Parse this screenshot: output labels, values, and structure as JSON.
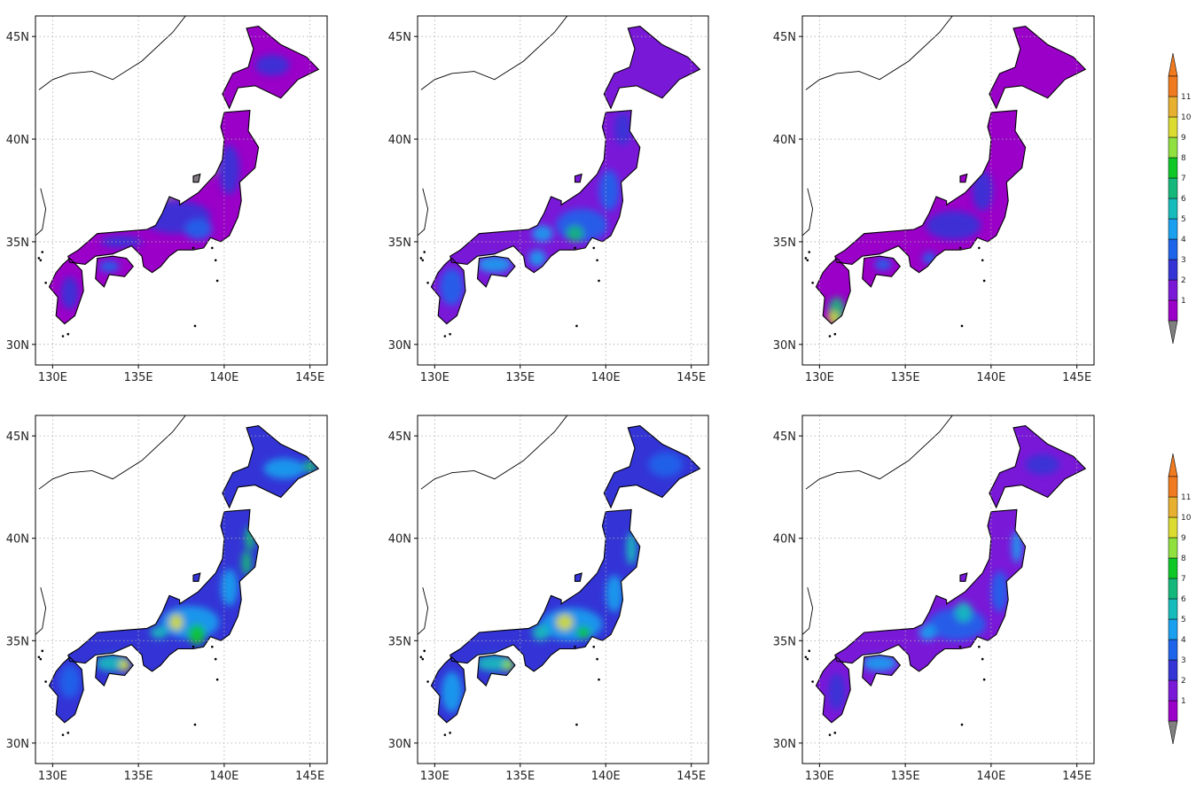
{
  "maps": {
    "lon_ticks": [
      "130E",
      "135E",
      "140E",
      "145E"
    ],
    "lat_ticks": [
      "30N",
      "35N",
      "40N",
      "45N"
    ],
    "lon_range": [
      129,
      146
    ],
    "lat_range": [
      29,
      46
    ],
    "grid": "dotted",
    "panels": [
      {
        "row": 1,
        "col": 1,
        "dominant_levels": [
          1,
          2,
          3
        ],
        "max_level": 5,
        "gray_area": "Japan Sea coast of Honshu"
      },
      {
        "row": 1,
        "col": 2,
        "dominant_levels": [
          2,
          3,
          4,
          5
        ],
        "max_level": 8
      },
      {
        "row": 1,
        "col": 3,
        "dominant_levels": [
          1,
          2,
          3
        ],
        "max_level": 10,
        "hotspot": "southern Kyushu"
      },
      {
        "row": 2,
        "col": 1,
        "dominant_levels": [
          3,
          4,
          5,
          6
        ],
        "max_level": 10
      },
      {
        "row": 2,
        "col": 2,
        "dominant_levels": [
          3,
          4,
          5,
          6
        ],
        "max_level": 10
      },
      {
        "row": 2,
        "col": 3,
        "dominant_levels": [
          2,
          3,
          4,
          5
        ],
        "max_level": 8
      }
    ]
  },
  "colorbar": {
    "labels": [
      "1",
      "2",
      "3",
      "4",
      "5",
      "6",
      "7",
      "8",
      "9",
      "10",
      "11"
    ],
    "colors": [
      "#9a00c8",
      "#7a18d8",
      "#3434d6",
      "#1e64ea",
      "#1aa0ee",
      "#16bcbc",
      "#14b87a",
      "#0ec828",
      "#90e040",
      "#dcdc30",
      "#e8b030",
      "#f07a20"
    ],
    "under_color": "#808080",
    "over_color": "#f07a20"
  }
}
